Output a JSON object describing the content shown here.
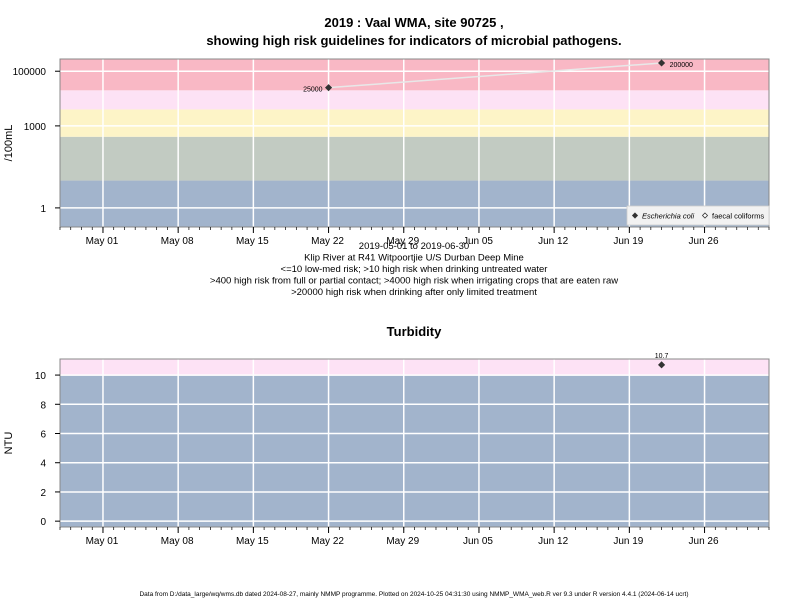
{
  "title_line1": "2019 : Vaal WMA, site 90725 ,",
  "title_line2": "showing high risk guidelines for indicators of microbial pathogens.",
  "chart_data": [
    {
      "type": "scatter",
      "ylabel": "/100mL",
      "y_scale": "log10",
      "ylim": [
        0.2,
        280000
      ],
      "y_ticks": [
        1,
        1000,
        100000
      ],
      "y_tick_labels": [
        "1",
        "1000",
        "100000"
      ],
      "xlim": [
        "2019-04-27",
        "2019-07-02"
      ],
      "x_ticks": [
        "2019-05-01",
        "2019-05-08",
        "2019-05-15",
        "2019-05-22",
        "2019-05-29",
        "2019-06-05",
        "2019-06-12",
        "2019-06-19",
        "2019-06-26"
      ],
      "x_tick_labels": [
        "May 01",
        "May 08",
        "May 15",
        "May 22",
        "May 29",
        "Jun 05",
        "Jun 12",
        "Jun 19",
        "Jun 26"
      ],
      "bands": [
        {
          "from": 0.2,
          "to": 10,
          "color": "#a2b4cc"
        },
        {
          "from": 10,
          "to": 400,
          "color": "#c2cbc2"
        },
        {
          "from": 400,
          "to": 4000,
          "color": "#fdf4c7"
        },
        {
          "from": 4000,
          "to": 20000,
          "color": "#fde2f5"
        },
        {
          "from": 20000,
          "to": 280000,
          "color": "#f9b8c5"
        }
      ],
      "series": [
        {
          "name": "Escherichia coli",
          "marker": "filled-diamond",
          "color": "#333333",
          "points": [
            {
              "x": "2019-05-22",
              "y": 25000,
              "label": "25000"
            },
            {
              "x": "2019-06-22",
              "y": 200000,
              "label": "200000"
            }
          ]
        },
        {
          "name": "faecal coliforms",
          "marker": "open-diamond",
          "color": "#333333",
          "points": []
        }
      ],
      "legend_position": "bottom-right",
      "caption": [
        "2019-05-01 to 2019-06-30",
        "Klip River at R41 Witpoortjie U/S Durban Deep Mine",
        "<=10 low-med risk; >10 high risk when drinking untreated water",
        ">400 high risk from full or partial contact; >4000 high risk when irrigating crops that are eaten raw",
        ">20000 high risk when drinking after only limited treatment"
      ]
    },
    {
      "type": "scatter",
      "title": "Turbidity",
      "ylabel": "NTU",
      "ylim": [
        -0.4,
        11.1
      ],
      "y_ticks": [
        0,
        2,
        4,
        6,
        8,
        10
      ],
      "y_tick_labels": [
        "0",
        "2",
        "4",
        "6",
        "8",
        "10"
      ],
      "xlim": [
        "2019-04-27",
        "2019-07-02"
      ],
      "x_ticks": [
        "2019-05-01",
        "2019-05-08",
        "2019-05-15",
        "2019-05-22",
        "2019-05-29",
        "2019-06-05",
        "2019-06-12",
        "2019-06-19",
        "2019-06-26"
      ],
      "x_tick_labels": [
        "May 01",
        "May 08",
        "May 15",
        "May 22",
        "May 29",
        "Jun 05",
        "Jun 12",
        "Jun 19",
        "Jun 26"
      ],
      "bands": [
        {
          "from": -0.4,
          "to": 10,
          "color": "#a2b4cc"
        },
        {
          "from": 10,
          "to": 11.1,
          "color": "#fde2f5"
        }
      ],
      "series": [
        {
          "marker": "filled-diamond",
          "color": "#333333",
          "points": [
            {
              "x": "2019-06-22",
              "y": 10.7,
              "label": "10.7"
            }
          ]
        }
      ]
    }
  ],
  "footer": "Data from D:/data_large/wq/wms.db dated 2024-08-27, mainly NMMP programme. Plotted on 2024-10-25 04:31:30 using NMMP_WMA_web.R ver 9.3 under R version 4.4.1 (2024-06-14 ucrt)"
}
